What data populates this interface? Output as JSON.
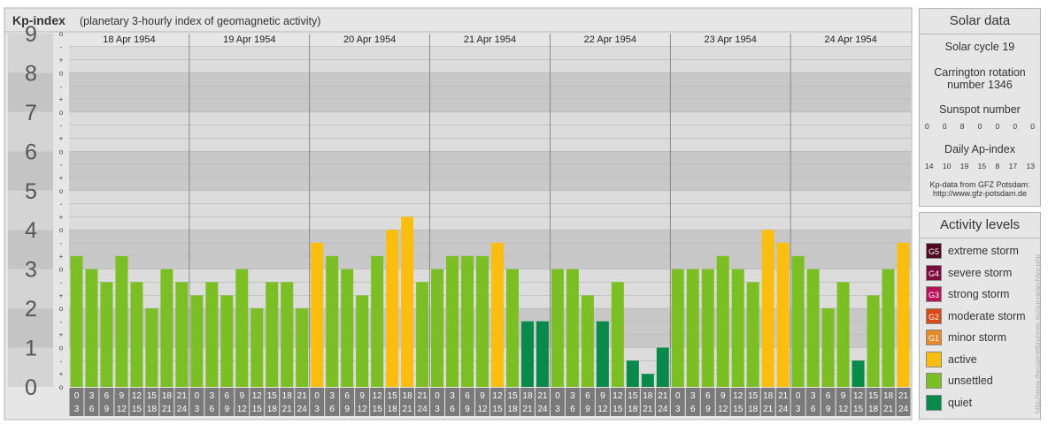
{
  "header": {
    "title": "Kp-index",
    "subtitle": "(planetary 3-hourly index of geomagnetic activity)"
  },
  "chart_data": {
    "type": "bar",
    "title": "Kp-index",
    "subtitle": "(planetary 3-hourly index of geomagnetic activity)",
    "y_axis_labels": [
      "0",
      "1",
      "2",
      "3",
      "4",
      "5",
      "6",
      "7",
      "8",
      "9"
    ],
    "y_minor_labels": [
      "o",
      "+",
      "-",
      "o",
      "+",
      "-",
      "o",
      "+",
      "-",
      "o",
      "+",
      "-",
      "o",
      "+",
      "-",
      "o",
      "+",
      "-",
      "o",
      "+",
      "-",
      "o",
      "+",
      "-",
      "o",
      "+",
      "-",
      "o"
    ],
    "ylim": [
      0,
      9
    ],
    "days": [
      "18 Apr 1954",
      "19 Apr 1954",
      "20 Apr 1954",
      "21 Apr 1954",
      "22 Apr 1954",
      "23 Apr 1954",
      "24 Apr 1954"
    ],
    "interval_labels": [
      [
        "0",
        "3"
      ],
      [
        "3",
        "6"
      ],
      [
        "6",
        "9"
      ],
      [
        "9",
        "12"
      ],
      [
        "12",
        "15"
      ],
      [
        "15",
        "18"
      ],
      [
        "18",
        "21"
      ],
      [
        "21",
        "24"
      ]
    ],
    "values": [
      [
        3.33,
        3.0,
        2.67,
        3.33,
        2.67,
        2.0,
        3.0,
        2.67
      ],
      [
        2.33,
        2.67,
        2.33,
        3.0,
        2.0,
        2.67,
        2.67,
        2.0
      ],
      [
        3.67,
        3.33,
        3.0,
        2.33,
        3.33,
        4.0,
        4.33,
        2.67
      ],
      [
        3.0,
        3.33,
        3.33,
        3.33,
        3.67,
        3.0,
        1.67,
        1.67
      ],
      [
        3.0,
        3.0,
        2.33,
        1.67,
        2.67,
        0.67,
        0.33,
        1.0
      ],
      [
        3.0,
        3.0,
        3.0,
        3.33,
        3.0,
        2.67,
        4.0,
        3.67
      ],
      [
        3.33,
        3.0,
        2.0,
        2.67,
        0.67,
        2.33,
        3.0,
        3.67
      ]
    ],
    "color_scale": {
      "quiet_below": 2,
      "unsettled_below": 3.5,
      "active_below": 5
    },
    "grid": true
  },
  "solar": {
    "title": "Solar data",
    "cycle": "Solar cycle 19",
    "carrington_line1": "Carrington rotation",
    "carrington_line2": "number 1346",
    "sunspot_title": "Sunspot number",
    "sunspot_values": [
      "0",
      "0",
      "8",
      "0",
      "0",
      "0",
      "0"
    ],
    "ap_title": "Daily Ap-index",
    "ap_values": [
      "14",
      "10",
      "19",
      "15",
      "8",
      "17",
      "13"
    ],
    "source_line1": "Kp-data from GFZ Potsdam:",
    "source_line2": "http://www.gfz-potsdam.de"
  },
  "activity": {
    "title": "Activity levels",
    "levels": [
      {
        "badge": "G5",
        "label": "extreme storm",
        "color": "#4d0a21"
      },
      {
        "badge": "G4",
        "label": "severe storm",
        "color": "#7c0a3a"
      },
      {
        "badge": "G3",
        "label": "strong storm",
        "color": "#b8125a"
      },
      {
        "badge": "G2",
        "label": "moderate storm",
        "color": "#d64a17"
      },
      {
        "badge": "G1",
        "label": "minor storm",
        "color": "#e5892a"
      },
      {
        "badge": "",
        "label": "active",
        "color": "#fbbe0e"
      },
      {
        "badge": "",
        "label": "unsettled",
        "color": "#7bbf24"
      },
      {
        "badge": "",
        "label": "quiet",
        "color": "#078a4a"
      }
    ]
  },
  "credit": "http://www.theusenetbrunnen.eu/surya/archive.php"
}
